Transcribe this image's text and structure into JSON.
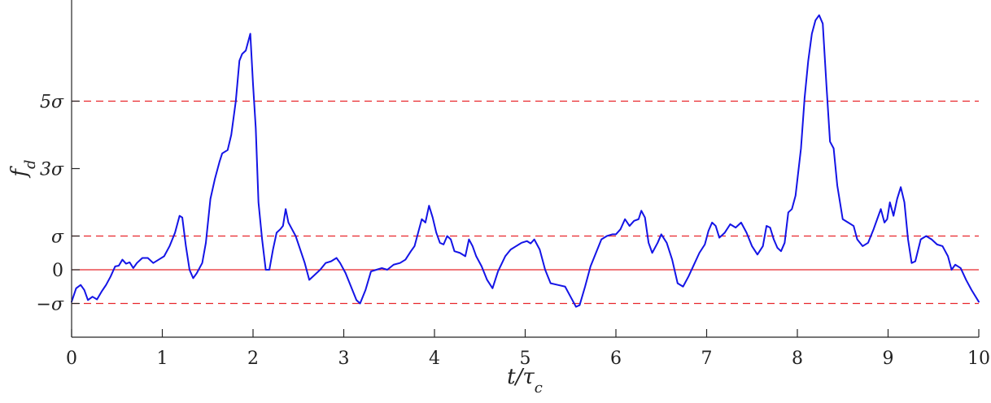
{
  "chart_data": {
    "type": "line",
    "xlabel": "t/τc",
    "ylabel": "f_d",
    "xlim": [
      0,
      10
    ],
    "ylim": [
      -2,
      7.8
    ],
    "xticks": [
      0,
      1,
      2,
      3,
      4,
      5,
      6,
      7,
      8,
      9,
      10
    ],
    "yticks": [
      {
        "value": -1,
        "label": "−σ"
      },
      {
        "value": 0,
        "label": "0"
      },
      {
        "value": 1,
        "label": "σ"
      },
      {
        "value": 3,
        "label": "3σ"
      },
      {
        "value": 5,
        "label": "5σ"
      }
    ],
    "grid": false,
    "reference_lines": [
      {
        "y": 0,
        "style": "solid",
        "color": "#e8262b"
      },
      {
        "y": 1,
        "style": "dashed",
        "color": "#e8262b"
      },
      {
        "y": -1,
        "style": "dashed",
        "color": "#e8262b"
      },
      {
        "y": 5,
        "style": "dashed",
        "color": "#e8262b"
      }
    ],
    "series": [
      {
        "color": "#1414e6",
        "points": [
          [
            0.0,
            -0.95
          ],
          [
            0.05,
            -0.55
          ],
          [
            0.1,
            -0.45
          ],
          [
            0.14,
            -0.6
          ],
          [
            0.18,
            -0.9
          ],
          [
            0.23,
            -0.8
          ],
          [
            0.28,
            -0.88
          ],
          [
            0.33,
            -0.65
          ],
          [
            0.38,
            -0.45
          ],
          [
            0.43,
            -0.2
          ],
          [
            0.48,
            0.1
          ],
          [
            0.52,
            0.12
          ],
          [
            0.56,
            0.3
          ],
          [
            0.6,
            0.18
          ],
          [
            0.64,
            0.22
          ],
          [
            0.68,
            0.05
          ],
          [
            0.72,
            0.2
          ],
          [
            0.78,
            0.35
          ],
          [
            0.84,
            0.35
          ],
          [
            0.9,
            0.2
          ],
          [
            0.96,
            0.3
          ],
          [
            1.02,
            0.4
          ],
          [
            1.08,
            0.7
          ],
          [
            1.14,
            1.1
          ],
          [
            1.19,
            1.6
          ],
          [
            1.22,
            1.55
          ],
          [
            1.26,
            0.7
          ],
          [
            1.3,
            0.0
          ],
          [
            1.34,
            -0.25
          ],
          [
            1.38,
            -0.1
          ],
          [
            1.44,
            0.2
          ],
          [
            1.48,
            0.8
          ],
          [
            1.53,
            2.1
          ],
          [
            1.58,
            2.7
          ],
          [
            1.63,
            3.2
          ],
          [
            1.66,
            3.45
          ],
          [
            1.72,
            3.55
          ],
          [
            1.76,
            4.0
          ],
          [
            1.81,
            5.0
          ],
          [
            1.85,
            6.2
          ],
          [
            1.88,
            6.4
          ],
          [
            1.92,
            6.5
          ],
          [
            1.95,
            6.8
          ],
          [
            1.97,
            7.0
          ],
          [
            2.0,
            5.5
          ],
          [
            2.03,
            4.2
          ],
          [
            2.06,
            2.0
          ],
          [
            2.1,
            0.9
          ],
          [
            2.14,
            0.0
          ],
          [
            2.18,
            0.0
          ],
          [
            2.22,
            0.6
          ],
          [
            2.26,
            1.1
          ],
          [
            2.3,
            1.2
          ],
          [
            2.33,
            1.3
          ],
          [
            2.36,
            1.8
          ],
          [
            2.39,
            1.4
          ],
          [
            2.43,
            1.2
          ],
          [
            2.47,
            1.0
          ],
          [
            2.52,
            0.6
          ],
          [
            2.57,
            0.2
          ],
          [
            2.62,
            -0.3
          ],
          [
            2.68,
            -0.15
          ],
          [
            2.74,
            0.0
          ],
          [
            2.8,
            0.2
          ],
          [
            2.86,
            0.25
          ],
          [
            2.92,
            0.35
          ],
          [
            2.96,
            0.2
          ],
          [
            3.02,
            -0.1
          ],
          [
            3.08,
            -0.5
          ],
          [
            3.14,
            -0.9
          ],
          [
            3.18,
            -1.0
          ],
          [
            3.24,
            -0.6
          ],
          [
            3.3,
            -0.05
          ],
          [
            3.36,
            0.0
          ],
          [
            3.42,
            0.05
          ],
          [
            3.48,
            0.0
          ],
          [
            3.55,
            0.15
          ],
          [
            3.62,
            0.2
          ],
          [
            3.68,
            0.3
          ],
          [
            3.74,
            0.55
          ],
          [
            3.78,
            0.7
          ],
          [
            3.82,
            1.1
          ],
          [
            3.86,
            1.5
          ],
          [
            3.9,
            1.4
          ],
          [
            3.94,
            1.9
          ],
          [
            3.98,
            1.55
          ],
          [
            4.02,
            1.1
          ],
          [
            4.06,
            0.8
          ],
          [
            4.1,
            0.75
          ],
          [
            4.14,
            1.0
          ],
          [
            4.18,
            0.9
          ],
          [
            4.22,
            0.55
          ],
          [
            4.28,
            0.5
          ],
          [
            4.34,
            0.4
          ],
          [
            4.38,
            0.9
          ],
          [
            4.42,
            0.7
          ],
          [
            4.46,
            0.4
          ],
          [
            4.52,
            0.1
          ],
          [
            4.58,
            -0.3
          ],
          [
            4.64,
            -0.55
          ],
          [
            4.7,
            -0.05
          ],
          [
            4.78,
            0.4
          ],
          [
            4.84,
            0.6
          ],
          [
            4.9,
            0.7
          ],
          [
            4.96,
            0.8
          ],
          [
            5.02,
            0.85
          ],
          [
            5.06,
            0.78
          ],
          [
            5.1,
            0.9
          ],
          [
            5.16,
            0.6
          ],
          [
            5.22,
            0.0
          ],
          [
            5.28,
            -0.4
          ],
          [
            5.36,
            -0.45
          ],
          [
            5.44,
            -0.5
          ],
          [
            5.5,
            -0.8
          ],
          [
            5.56,
            -1.1
          ],
          [
            5.6,
            -1.05
          ],
          [
            5.66,
            -0.5
          ],
          [
            5.72,
            0.1
          ],
          [
            5.78,
            0.5
          ],
          [
            5.84,
            0.9
          ],
          [
            5.9,
            1.0
          ],
          [
            5.96,
            1.05
          ],
          [
            6.0,
            1.05
          ],
          [
            6.05,
            1.2
          ],
          [
            6.1,
            1.5
          ],
          [
            6.15,
            1.3
          ],
          [
            6.2,
            1.45
          ],
          [
            6.25,
            1.5
          ],
          [
            6.28,
            1.75
          ],
          [
            6.32,
            1.55
          ],
          [
            6.36,
            0.8
          ],
          [
            6.4,
            0.5
          ],
          [
            6.46,
            0.8
          ],
          [
            6.5,
            1.05
          ],
          [
            6.56,
            0.8
          ],
          [
            6.62,
            0.3
          ],
          [
            6.68,
            -0.4
          ],
          [
            6.74,
            -0.5
          ],
          [
            6.8,
            -0.2
          ],
          [
            6.86,
            0.15
          ],
          [
            6.92,
            0.5
          ],
          [
            6.98,
            0.75
          ],
          [
            7.02,
            1.15
          ],
          [
            7.06,
            1.4
          ],
          [
            7.1,
            1.3
          ],
          [
            7.14,
            0.95
          ],
          [
            7.2,
            1.1
          ],
          [
            7.26,
            1.35
          ],
          [
            7.32,
            1.25
          ],
          [
            7.38,
            1.4
          ],
          [
            7.44,
            1.1
          ],
          [
            7.5,
            0.7
          ],
          [
            7.56,
            0.45
          ],
          [
            7.62,
            0.7
          ],
          [
            7.66,
            1.3
          ],
          [
            7.7,
            1.25
          ],
          [
            7.74,
            0.9
          ],
          [
            7.78,
            0.65
          ],
          [
            7.82,
            0.55
          ],
          [
            7.86,
            0.8
          ],
          [
            7.9,
            1.7
          ],
          [
            7.94,
            1.8
          ],
          [
            7.98,
            2.2
          ],
          [
            8.04,
            3.6
          ],
          [
            8.08,
            5.1
          ],
          [
            8.12,
            6.2
          ],
          [
            8.16,
            7.0
          ],
          [
            8.2,
            7.4
          ],
          [
            8.24,
            7.55
          ],
          [
            8.28,
            7.3
          ],
          [
            8.32,
            5.5
          ],
          [
            8.36,
            3.8
          ],
          [
            8.4,
            3.6
          ],
          [
            8.44,
            2.5
          ],
          [
            8.5,
            1.5
          ],
          [
            8.56,
            1.4
          ],
          [
            8.62,
            1.3
          ],
          [
            8.66,
            0.9
          ],
          [
            8.72,
            0.7
          ],
          [
            8.78,
            0.8
          ],
          [
            8.84,
            1.2
          ],
          [
            8.88,
            1.5
          ],
          [
            8.92,
            1.8
          ],
          [
            8.96,
            1.4
          ],
          [
            8.99,
            1.5
          ],
          [
            9.02,
            2.0
          ],
          [
            9.06,
            1.6
          ],
          [
            9.1,
            2.1
          ],
          [
            9.14,
            2.45
          ],
          [
            9.18,
            2.0
          ],
          [
            9.22,
            0.9
          ],
          [
            9.26,
            0.2
          ],
          [
            9.3,
            0.25
          ],
          [
            9.36,
            0.9
          ],
          [
            9.42,
            1.0
          ],
          [
            9.48,
            0.9
          ],
          [
            9.54,
            0.75
          ],
          [
            9.6,
            0.7
          ],
          [
            9.66,
            0.4
          ],
          [
            9.7,
            0.0
          ],
          [
            9.74,
            0.15
          ],
          [
            9.8,
            0.05
          ],
          [
            9.86,
            -0.3
          ],
          [
            9.92,
            -0.6
          ],
          [
            10.0,
            -0.95
          ]
        ]
      }
    ]
  }
}
